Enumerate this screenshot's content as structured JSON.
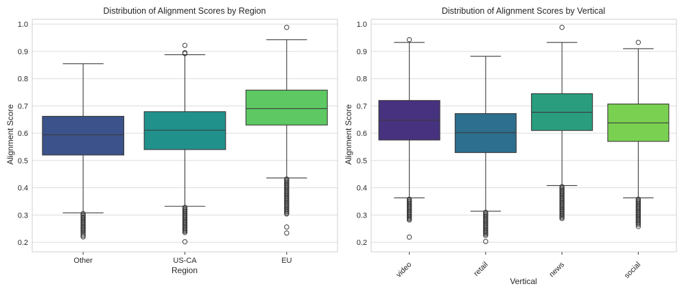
{
  "chart_data": [
    {
      "type": "box",
      "title": "Distribution of Alignment Scores by Region",
      "xlabel": "Region",
      "ylabel": "Alignment Score",
      "ylim": [
        0.165,
        1.018
      ],
      "yticks": [
        0.2,
        0.3,
        0.4,
        0.5,
        0.6,
        0.7,
        0.8,
        0.9,
        1.0
      ],
      "ytick_labels": [
        "0.2",
        "0.3",
        "0.4",
        "0.5",
        "0.6",
        "0.7",
        "0.8",
        "0.9",
        "1.0"
      ],
      "x_tick_rotation": 0,
      "grid": true,
      "categories": [
        "Other",
        "US-CA",
        "EU"
      ],
      "boxes": [
        {
          "category": "Other",
          "color": "#3b528b",
          "whisker_low": 0.308,
          "q1": 0.52,
          "median": 0.594,
          "q3": 0.662,
          "whisker_high": 0.855,
          "fliers": [
            0.305,
            0.3,
            0.296,
            0.292,
            0.288,
            0.284,
            0.28,
            0.276,
            0.272,
            0.268,
            0.264,
            0.26,
            0.256,
            0.252,
            0.248,
            0.244,
            0.24,
            0.236,
            0.23,
            0.225,
            0.22
          ]
        },
        {
          "category": "US-CA",
          "color": "#21918c",
          "whisker_low": 0.332,
          "q1": 0.54,
          "median": 0.611,
          "q3": 0.679,
          "whisker_high": 0.888,
          "fliers": [
            0.892,
            0.895,
            0.922,
            0.328,
            0.324,
            0.32,
            0.316,
            0.312,
            0.308,
            0.304,
            0.3,
            0.296,
            0.292,
            0.288,
            0.284,
            0.28,
            0.276,
            0.272,
            0.268,
            0.264,
            0.26,
            0.256,
            0.252,
            0.248,
            0.244,
            0.24,
            0.236,
            0.202
          ]
        },
        {
          "category": "EU",
          "color": "#5ec962",
          "whisker_low": 0.436,
          "q1": 0.63,
          "median": 0.69,
          "q3": 0.758,
          "whisker_high": 0.943,
          "fliers": [
            0.988,
            0.432,
            0.428,
            0.424,
            0.42,
            0.416,
            0.412,
            0.408,
            0.404,
            0.4,
            0.396,
            0.392,
            0.388,
            0.384,
            0.38,
            0.376,
            0.372,
            0.368,
            0.364,
            0.36,
            0.356,
            0.352,
            0.348,
            0.344,
            0.34,
            0.336,
            0.332,
            0.328,
            0.324,
            0.32,
            0.316,
            0.312,
            0.308,
            0.304,
            0.256,
            0.234
          ]
        }
      ]
    },
    {
      "type": "box",
      "title": "Distribution of Alignment Scores by Vertical",
      "xlabel": "Vertical",
      "ylabel": "Alignment Score",
      "ylim": [
        0.165,
        1.018
      ],
      "yticks": [
        0.2,
        0.3,
        0.4,
        0.5,
        0.6,
        0.7,
        0.8,
        0.9,
        1.0
      ],
      "ytick_labels": [
        "0.2",
        "0.3",
        "0.4",
        "0.5",
        "0.6",
        "0.7",
        "0.8",
        "0.9",
        "1.0"
      ],
      "x_tick_rotation": -45,
      "grid": true,
      "categories": [
        "video",
        "retail",
        "news",
        "social"
      ],
      "boxes": [
        {
          "category": "video",
          "color": "#46327e",
          "whisker_low": 0.363,
          "q1": 0.575,
          "median": 0.648,
          "q3": 0.72,
          "whisker_high": 0.933,
          "fliers": [
            0.943,
            0.358,
            0.354,
            0.35,
            0.346,
            0.342,
            0.338,
            0.334,
            0.33,
            0.326,
            0.322,
            0.318,
            0.314,
            0.31,
            0.306,
            0.302,
            0.298,
            0.294,
            0.29,
            0.286,
            0.282,
            0.219
          ]
        },
        {
          "category": "retail",
          "color": "#2c6f8e",
          "whisker_low": 0.314,
          "q1": 0.529,
          "median": 0.602,
          "q3": 0.672,
          "whisker_high": 0.882,
          "fliers": [
            0.31,
            0.306,
            0.302,
            0.298,
            0.294,
            0.29,
            0.286,
            0.282,
            0.278,
            0.274,
            0.27,
            0.266,
            0.262,
            0.258,
            0.254,
            0.25,
            0.246,
            0.242,
            0.238,
            0.234,
            0.23,
            0.225,
            0.203
          ]
        },
        {
          "category": "news",
          "color": "#2a9d7f",
          "whisker_low": 0.408,
          "q1": 0.61,
          "median": 0.677,
          "q3": 0.745,
          "whisker_high": 0.933,
          "fliers": [
            0.988,
            0.404,
            0.4,
            0.396,
            0.392,
            0.388,
            0.384,
            0.38,
            0.376,
            0.372,
            0.368,
            0.364,
            0.36,
            0.356,
            0.352,
            0.348,
            0.344,
            0.34,
            0.336,
            0.332,
            0.328,
            0.324,
            0.32,
            0.316,
            0.312,
            0.308,
            0.304,
            0.3,
            0.296,
            0.292,
            0.287
          ]
        },
        {
          "category": "social",
          "color": "#7ad151",
          "whisker_low": 0.363,
          "q1": 0.57,
          "median": 0.638,
          "q3": 0.707,
          "whisker_high": 0.91,
          "fliers": [
            0.933,
            0.358,
            0.354,
            0.35,
            0.346,
            0.342,
            0.338,
            0.334,
            0.33,
            0.326,
            0.322,
            0.318,
            0.314,
            0.31,
            0.306,
            0.302,
            0.298,
            0.294,
            0.29,
            0.286,
            0.282,
            0.278,
            0.274,
            0.27,
            0.265,
            0.258
          ]
        }
      ]
    }
  ]
}
